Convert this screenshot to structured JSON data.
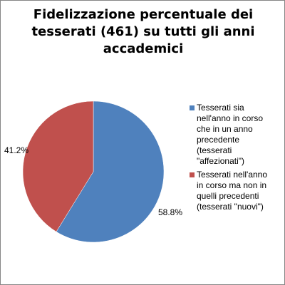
{
  "chart_data": {
    "type": "pie",
    "title_lines": [
      "Fidelizzazione percentuale dei",
      "tesserati (461) su tutti gli anni",
      "accademici"
    ],
    "slices": [
      {
        "legend_lines": [
          "Tesserati sia",
          "nell'anno in corso",
          "che in un anno",
          "precedente",
          "(tesserati",
          "\"affezionati\")"
        ],
        "value": 58.8,
        "label": "58.8%",
        "color": "#4F81BD"
      },
      {
        "legend_lines": [
          "Tesserati nell'anno",
          "in corso ma non in",
          "quelli precedenti",
          "(tesserati \"nuovi\")"
        ],
        "value": 41.2,
        "label": "41.2%",
        "color": "#C0504D"
      }
    ],
    "legend_position": "right"
  }
}
